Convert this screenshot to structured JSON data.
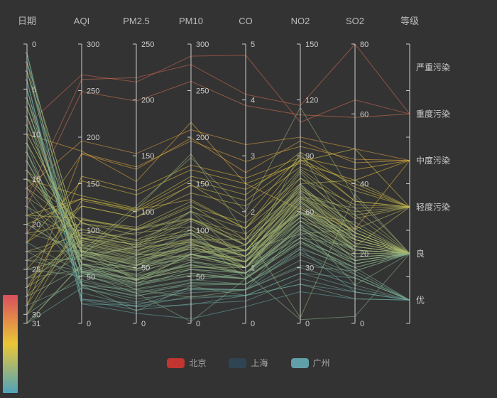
{
  "chart_data": {
    "type": "parallel",
    "title": "",
    "background_color": "#333333",
    "axis_line_color": "#cccccc",
    "axis_label_color": "#cccccc",
    "axis_name_color": "#bbbbbb",
    "line_style": {
      "width": 1,
      "opacity": 0.55
    },
    "visual_map": {
      "mapped_dimension": "AQI",
      "domain": [
        0,
        300
      ],
      "colors_top_to_bottom": [
        "#d94e5d",
        "#eac736",
        "#50a3ba"
      ]
    },
    "axes": [
      {
        "name": "日期",
        "type": "number",
        "inverse": true,
        "min": 0,
        "max": 31,
        "ticks": [
          0,
          5,
          10,
          15,
          20,
          25,
          30,
          31
        ],
        "minor_tick_every": 1
      },
      {
        "name": "AQI",
        "type": "number",
        "min": 0,
        "max": 300,
        "ticks": [
          0,
          50,
          100,
          150,
          200,
          250,
          300
        ]
      },
      {
        "name": "PM2.5",
        "type": "number",
        "min": 0,
        "max": 250,
        "ticks": [
          0,
          50,
          100,
          150,
          200,
          250
        ]
      },
      {
        "name": "PM10",
        "type": "number",
        "min": 0,
        "max": 300,
        "ticks": [
          0,
          50,
          100,
          150,
          200,
          250,
          300
        ]
      },
      {
        "name": "CO",
        "type": "number",
        "min": 0,
        "max": 5,
        "ticks": [
          0,
          1,
          2,
          3,
          4,
          5
        ]
      },
      {
        "name": "NO2",
        "type": "number",
        "min": 0,
        "max": 150,
        "ticks": [
          0,
          30,
          60,
          90,
          120,
          150
        ]
      },
      {
        "name": "SO2",
        "type": "number",
        "min": 0,
        "max": 80,
        "ticks": [
          0,
          20,
          40,
          60,
          80
        ]
      },
      {
        "name": "等级",
        "type": "category",
        "categories": [
          "优",
          "良",
          "轻度污染",
          "中度污染",
          "重度污染",
          "严重污染"
        ]
      }
    ],
    "legend": {
      "items": [
        {
          "label": "北京",
          "color": "#c23531"
        },
        {
          "label": "上海",
          "color": "#2f4554"
        },
        {
          "label": "广州",
          "color": "#61a0a8"
        }
      ]
    },
    "series": [
      {
        "name": "北京",
        "data": [
          [
            1,
            55,
            39,
            58,
            0.9,
            44,
            18,
            "良"
          ],
          [
            2,
            25,
            12,
            21,
            0.4,
            24,
            9,
            "优"
          ],
          [
            3,
            56,
            40,
            63,
            0.9,
            2,
            2,
            "良"
          ],
          [
            4,
            33,
            15,
            29,
            0.5,
            27,
            10,
            "优"
          ],
          [
            5,
            42,
            24,
            44,
            0.7,
            40,
            16,
            "优"
          ],
          [
            6,
            82,
            58,
            90,
            1.5,
            68,
            33,
            "良"
          ],
          [
            7,
            74,
            49,
            77,
            1.3,
            48,
            27,
            "良"
          ],
          [
            8,
            78,
            55,
            80,
            1.3,
            59,
            29,
            "良"
          ],
          [
            9,
            267,
            216,
            287,
            4.8,
            108,
            64,
            "重度污染"
          ],
          [
            10,
            185,
            127,
            216,
            2.5,
            61,
            27,
            "中度污染"
          ],
          [
            11,
            39,
            19,
            38,
            0.6,
            31,
            15,
            "优"
          ],
          [
            12,
            41,
            11,
            40,
            0.5,
            21,
            7,
            "优"
          ],
          [
            13,
            64,
            38,
            74,
            1.0,
            46,
            22,
            "良"
          ],
          [
            14,
            108,
            79,
            120,
            1.7,
            75,
            41,
            "轻度污染"
          ],
          [
            15,
            137,
            103,
            158,
            2.4,
            87,
            50,
            "轻度污染"
          ],
          [
            16,
            196,
            152,
            208,
            3.2,
            100,
            50,
            "中度污染"
          ],
          [
            17,
            262,
            220,
            278,
            4.1,
            117,
            80,
            "重度污染"
          ],
          [
            18,
            249,
            199,
            260,
            3.9,
            112,
            59,
            "重度污染"
          ],
          [
            19,
            134,
            101,
            154,
            2.3,
            92,
            39,
            "轻度污染"
          ],
          [
            20,
            71,
            40,
            74,
            1.1,
            55,
            24,
            "良"
          ],
          [
            21,
            182,
            138,
            199,
            2.7,
            98,
            46,
            "中度污染"
          ],
          [
            22,
            153,
            115,
            165,
            2.5,
            86,
            41,
            "中度污染"
          ],
          [
            23,
            78,
            52,
            84,
            1.3,
            60,
            26,
            "良"
          ],
          [
            24,
            101,
            75,
            112,
            1.6,
            71,
            32,
            "轻度污染"
          ],
          [
            25,
            126,
            95,
            140,
            2.1,
            84,
            38,
            "轻度污染"
          ],
          [
            26,
            78,
            54,
            85,
            1.2,
            57,
            25,
            "良"
          ],
          [
            27,
            132,
            100,
            148,
            2.2,
            88,
            40,
            "轻度污染"
          ],
          [
            28,
            183,
            140,
            196,
            2.9,
            95,
            47,
            "中度污染"
          ],
          [
            29,
            158,
            119,
            170,
            2.6,
            89,
            44,
            "中度污染"
          ],
          [
            30,
            112,
            83,
            125,
            1.8,
            78,
            34,
            "轻度污染"
          ],
          [
            31,
            63,
            36,
            66,
            1.0,
            50,
            21,
            "良"
          ]
        ]
      },
      {
        "name": "上海",
        "data": [
          [
            1,
            26,
            18,
            27,
            0.5,
            27,
            13,
            "优"
          ],
          [
            2,
            85,
            62,
            71,
            1.2,
            60,
            18,
            "良"
          ],
          [
            3,
            78,
            38,
            74,
            1.4,
            75,
            20,
            "良"
          ],
          [
            4,
            21,
            16,
            36,
            0.6,
            40,
            9,
            "优"
          ],
          [
            5,
            41,
            30,
            46,
            0.9,
            48,
            14,
            "优"
          ],
          [
            6,
            56,
            52,
            69,
            1.3,
            60,
            25,
            "良"
          ],
          [
            7,
            64,
            30,
            28,
            0.6,
            51,
            17,
            "良"
          ],
          [
            8,
            55,
            48,
            74,
            1.1,
            75,
            26,
            "良"
          ],
          [
            9,
            76,
            85,
            113,
            1.4,
            81,
            27,
            "良"
          ],
          [
            10,
            91,
            81,
            104,
            1.2,
            68,
            26,
            "良"
          ],
          [
            11,
            84,
            39,
            60,
            1.0,
            66,
            22,
            "良"
          ],
          [
            12,
            64,
            51,
            101,
            0.9,
            53,
            21,
            "良"
          ],
          [
            13,
            70,
            69,
            120,
            1.1,
            92,
            24,
            "良"
          ],
          [
            14,
            77,
            105,
            178,
            2.0,
            116,
            36,
            "良"
          ],
          [
            15,
            109,
            68,
            87,
            1.0,
            63,
            22,
            "轻度污染"
          ],
          [
            16,
            73,
            68,
            97,
            1.0,
            60,
            24,
            "良"
          ],
          [
            17,
            54,
            27,
            2,
            0.8,
            53,
            11,
            "良"
          ],
          [
            18,
            51,
            61,
            97,
            0.8,
            71,
            21,
            "良"
          ],
          [
            19,
            91,
            71,
            121,
            1.4,
            67,
            31,
            "良"
          ],
          [
            20,
            73,
            102,
            182,
            1.6,
            3,
            37,
            "良"
          ],
          [
            21,
            107,
            84,
            127,
            1.5,
            82,
            31,
            "轻度污染"
          ],
          [
            22,
            126,
            95,
            149,
            1.9,
            90,
            35,
            "轻度污染"
          ],
          [
            23,
            95,
            70,
            112,
            1.4,
            73,
            28,
            "良"
          ],
          [
            24,
            69,
            48,
            82,
            1.1,
            57,
            21,
            "良"
          ],
          [
            25,
            51,
            33,
            58,
            0.8,
            44,
            15,
            "良"
          ],
          [
            26,
            58,
            39,
            66,
            0.9,
            51,
            18,
            "良"
          ],
          [
            27,
            74,
            52,
            89,
            1.2,
            64,
            23,
            "良"
          ],
          [
            28,
            92,
            68,
            110,
            1.4,
            74,
            28,
            "良"
          ],
          [
            29,
            111,
            86,
            131,
            1.7,
            83,
            33,
            "轻度污染"
          ],
          [
            30,
            89,
            64,
            104,
            1.3,
            69,
            26,
            "良"
          ],
          [
            31,
            64,
            44,
            75,
            1.0,
            55,
            19,
            "良"
          ]
        ]
      },
      {
        "name": "广州",
        "data": [
          [
            1,
            26,
            15,
            20,
            0.5,
            21,
            9,
            "优"
          ],
          [
            2,
            85,
            61,
            80,
            1.1,
            65,
            24,
            "良"
          ],
          [
            3,
            78,
            56,
            84,
            1.0,
            62,
            21,
            "良"
          ],
          [
            4,
            21,
            9,
            5,
            0.3,
            17,
            7,
            "优"
          ],
          [
            5,
            41,
            25,
            37,
            0.6,
            34,
            13,
            "优"
          ],
          [
            6,
            56,
            36,
            54,
            0.8,
            46,
            17,
            "良"
          ],
          [
            7,
            64,
            42,
            62,
            0.9,
            52,
            19,
            "良"
          ],
          [
            8,
            55,
            35,
            52,
            0.8,
            44,
            16,
            "良"
          ],
          [
            9,
            76,
            52,
            74,
            1.0,
            59,
            21,
            "良"
          ],
          [
            10,
            91,
            65,
            90,
            1.2,
            67,
            25,
            "良"
          ],
          [
            11,
            84,
            59,
            82,
            1.1,
            63,
            23,
            "良"
          ],
          [
            12,
            64,
            43,
            63,
            0.9,
            52,
            19,
            "良"
          ],
          [
            13,
            70,
            47,
            68,
            0.9,
            55,
            20,
            "良"
          ],
          [
            14,
            77,
            53,
            75,
            1.0,
            60,
            22,
            "良"
          ],
          [
            15,
            92,
            66,
            91,
            1.2,
            68,
            25,
            "良"
          ],
          [
            16,
            101,
            74,
            100,
            1.3,
            73,
            27,
            "轻度污染"
          ],
          [
            17,
            96,
            70,
            95,
            1.3,
            70,
            26,
            "良"
          ],
          [
            18,
            87,
            62,
            86,
            1.1,
            65,
            24,
            "良"
          ],
          [
            19,
            113,
            84,
            112,
            1.5,
            78,
            30,
            "轻度污染"
          ],
          [
            20,
            134,
            102,
            133,
            1.7,
            88,
            35,
            "轻度污染"
          ],
          [
            21,
            81,
            57,
            80,
            1.1,
            62,
            22,
            "良"
          ],
          [
            22,
            54,
            34,
            51,
            0.8,
            43,
            16,
            "良"
          ],
          [
            23,
            47,
            28,
            43,
            0.7,
            38,
            14,
            "优"
          ],
          [
            24,
            56,
            36,
            54,
            0.8,
            46,
            17,
            "良"
          ],
          [
            25,
            73,
            49,
            71,
            1.0,
            57,
            21,
            "良"
          ],
          [
            26,
            89,
            63,
            88,
            1.2,
            66,
            24,
            "良"
          ],
          [
            27,
            98,
            72,
            97,
            1.3,
            72,
            26,
            "良"
          ],
          [
            28,
            60,
            39,
            58,
            0.9,
            49,
            18,
            "良"
          ],
          [
            29,
            45,
            27,
            41,
            0.7,
            37,
            13,
            "优"
          ],
          [
            30,
            51,
            31,
            47,
            0.7,
            41,
            15,
            "良"
          ],
          [
            31,
            38,
            22,
            33,
            0.6,
            30,
            11,
            "优"
          ]
        ]
      }
    ]
  }
}
